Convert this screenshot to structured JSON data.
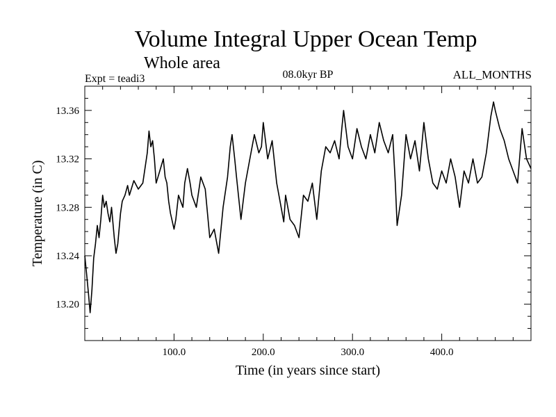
{
  "chart_data": {
    "type": "line",
    "title": "Volume Integral Upper Ocean Temp",
    "subtitle": "Whole area",
    "expt_label": "Expt = teadi3",
    "period_label": "08.0kyr BP",
    "months_label": "ALL_MONTHS",
    "xlabel": "Time (in years since start)",
    "ylabel": "Temperature (in C)",
    "xlim": [
      0,
      500
    ],
    "ylim": [
      13.17,
      13.38
    ],
    "xticks": [
      100,
      200,
      300,
      400
    ],
    "xtick_labels": [
      "100.0",
      "200.0",
      "300.0",
      "400.0"
    ],
    "yticks": [
      13.2,
      13.24,
      13.28,
      13.32,
      13.36
    ],
    "ytick_labels": [
      "13.20",
      "13.24",
      "13.28",
      "13.32",
      "13.36"
    ],
    "grid": false,
    "series": [
      {
        "name": "volume integral upper ocean temp",
        "x": [
          0,
          2,
          4,
          6,
          8,
          10,
          12,
          14,
          16,
          18,
          20,
          22,
          24,
          26,
          28,
          30,
          33,
          35,
          37,
          40,
          42,
          45,
          48,
          50,
          55,
          60,
          65,
          70,
          72,
          74,
          76,
          78,
          80,
          84,
          88,
          90,
          92,
          94,
          96,
          100,
          102,
          105,
          110,
          112,
          115,
          118,
          120,
          125,
          130,
          135,
          140,
          145,
          150,
          155,
          160,
          163,
          165,
          168,
          170,
          175,
          180,
          185,
          190,
          195,
          198,
          200,
          205,
          210,
          215,
          220,
          223,
          225,
          230,
          235,
          240,
          245,
          250,
          255,
          260,
          265,
          270,
          275,
          280,
          285,
          288,
          290,
          295,
          300,
          305,
          310,
          315,
          320,
          325,
          330,
          335,
          340,
          345,
          348,
          350,
          355,
          360,
          365,
          370,
          375,
          380,
          385,
          390,
          395,
          400,
          405,
          410,
          415,
          420,
          425,
          430,
          435,
          440,
          445,
          450,
          455,
          458,
          460,
          465,
          470,
          475,
          480,
          485,
          490,
          495,
          500
        ],
        "values": [
          13.24,
          13.225,
          13.21,
          13.193,
          13.212,
          13.238,
          13.25,
          13.265,
          13.255,
          13.27,
          13.29,
          13.28,
          13.285,
          13.275,
          13.268,
          13.28,
          13.255,
          13.242,
          13.25,
          13.275,
          13.285,
          13.29,
          13.298,
          13.29,
          13.302,
          13.295,
          13.3,
          13.325,
          13.343,
          13.33,
          13.335,
          13.32,
          13.3,
          13.31,
          13.32,
          13.305,
          13.3,
          13.285,
          13.275,
          13.262,
          13.27,
          13.29,
          13.28,
          13.3,
          13.312,
          13.3,
          13.29,
          13.28,
          13.305,
          13.295,
          13.255,
          13.262,
          13.242,
          13.28,
          13.305,
          13.33,
          13.34,
          13.32,
          13.305,
          13.27,
          13.3,
          13.32,
          13.34,
          13.325,
          13.33,
          13.35,
          13.32,
          13.335,
          13.3,
          13.28,
          13.268,
          13.29,
          13.27,
          13.265,
          13.255,
          13.29,
          13.285,
          13.3,
          13.27,
          13.31,
          13.33,
          13.325,
          13.335,
          13.32,
          13.345,
          13.36,
          13.33,
          13.32,
          13.345,
          13.33,
          13.32,
          13.34,
          13.325,
          13.35,
          13.335,
          13.325,
          13.34,
          13.3,
          13.265,
          13.29,
          13.34,
          13.32,
          13.335,
          13.31,
          13.35,
          13.32,
          13.3,
          13.295,
          13.31,
          13.3,
          13.32,
          13.305,
          13.28,
          13.31,
          13.3,
          13.32,
          13.3,
          13.305,
          13.325,
          13.355,
          13.367,
          13.36,
          13.345,
          13.335,
          13.32,
          13.31,
          13.3,
          13.345,
          13.32,
          13.312
        ]
      }
    ]
  }
}
